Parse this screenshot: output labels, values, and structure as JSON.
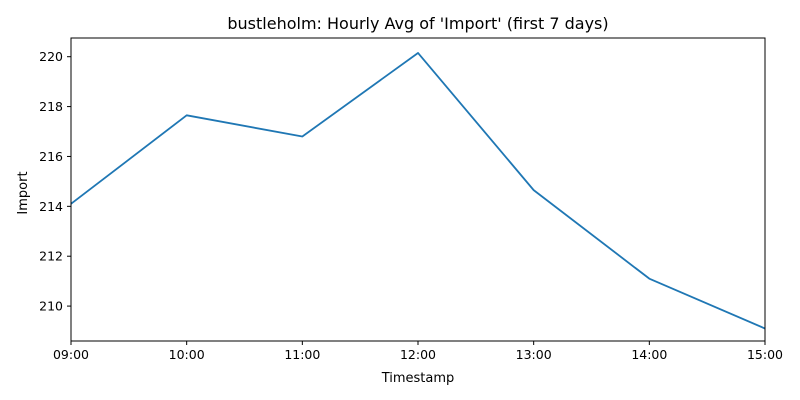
{
  "chart_data": {
    "type": "line",
    "title": "bustleholm: Hourly Avg of 'Import' (first 7 days)",
    "xlabel": "Timestamp",
    "ylabel": "Import",
    "x": [
      "09:00",
      "10:00",
      "11:00",
      "12:00",
      "13:00",
      "14:00",
      "15:00"
    ],
    "series": [
      {
        "name": "Import",
        "values": [
          214.1,
          217.65,
          216.8,
          220.15,
          214.65,
          211.1,
          209.1
        ]
      }
    ],
    "yticks": [
      210,
      212,
      214,
      216,
      218,
      220
    ],
    "ylim": [
      208.6,
      220.75
    ],
    "grid": false,
    "legend": "none",
    "color": "#1f77b4"
  }
}
